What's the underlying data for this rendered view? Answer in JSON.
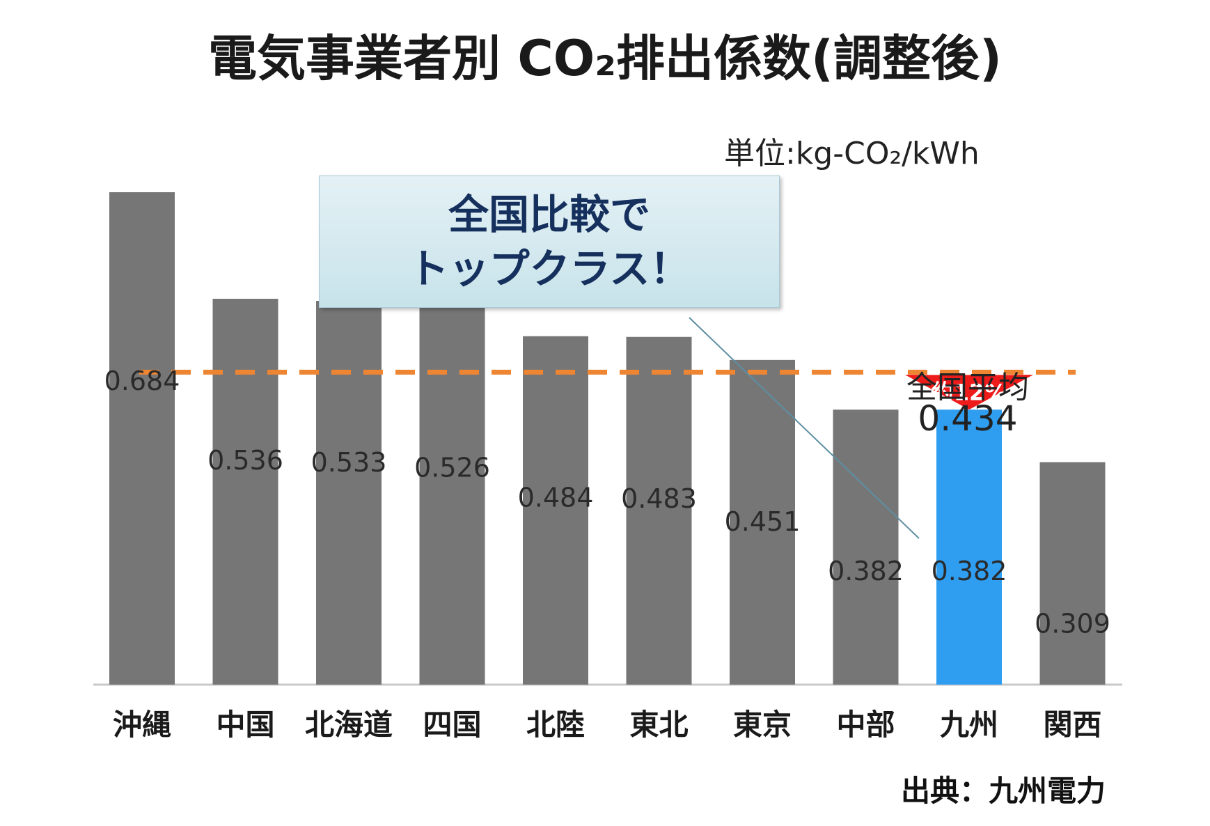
{
  "title": "電気事業者別 CO₂排出係数(調整後)",
  "unit_label": "単位:kg-CO₂/kWh",
  "callout": {
    "line1": "全国比較で",
    "line2": "トップクラス！"
  },
  "average": {
    "label": "全国平均",
    "value_text": "0.434"
  },
  "arrow_label": "約12%",
  "source": "出典：九州電力",
  "colors": {
    "bar": "#767676",
    "highlight": "#2f9ef0",
    "average_line": "#ee8533",
    "arrow": "#ee1b1b"
  },
  "chart_data": {
    "type": "bar",
    "categories": [
      "沖縄",
      "中国",
      "北海道",
      "四国",
      "北陸",
      "東北",
      "東京",
      "中部",
      "九州",
      "関西"
    ],
    "values": [
      0.684,
      0.536,
      0.533,
      0.526,
      0.484,
      0.483,
      0.451,
      0.382,
      0.382,
      0.309
    ],
    "value_labels": [
      "0.684",
      "0.536",
      "0.533",
      "0.526",
      "0.484",
      "0.483",
      "0.451",
      "0.382",
      "0.382",
      "0.309"
    ],
    "highlight_category": "九州",
    "average": 0.434,
    "ylim": [
      0,
      0.7
    ],
    "grid": false,
    "legend": "none"
  }
}
